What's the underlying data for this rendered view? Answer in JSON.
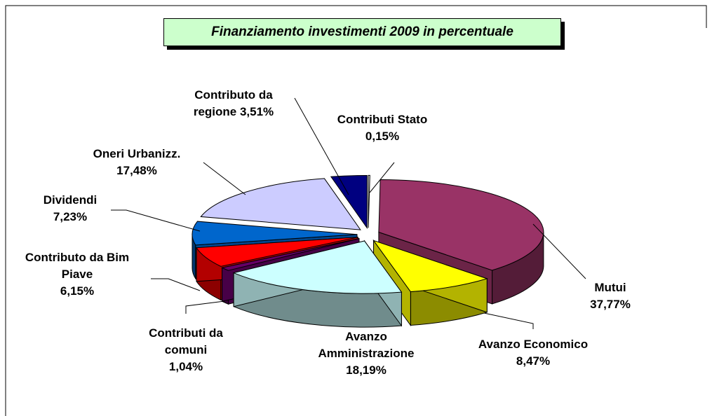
{
  "chart_data": {
    "type": "pie",
    "title": "Finanziamento investimenti 2009 in percentuale",
    "categories": [
      "Contributi Stato",
      "Mutui",
      "Avanzo Economico",
      "Avanzo Amministrazione",
      "Contributi da comuni",
      "Contributo da Bim Piave",
      "Dividendi",
      "Oneri Urbanizz.",
      "Contributo da regione"
    ],
    "values": [
      0.15,
      37.77,
      8.47,
      18.19,
      1.04,
      6.15,
      7.23,
      17.48,
      3.51
    ],
    "value_labels": [
      "0,15%",
      "37,77%",
      "8,47%",
      "18,19%",
      "1,04%",
      "6,15%",
      "7,23%",
      "17,48%",
      "3,51%"
    ],
    "colors": [
      "#e8e8e8",
      "#993366",
      "#ffff00",
      "#ccffff",
      "#660066",
      "#ff0000",
      "#0066cc",
      "#ccccff",
      "#000080"
    ]
  }
}
